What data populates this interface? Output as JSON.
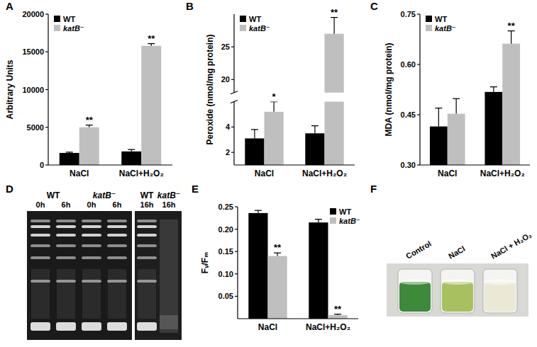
{
  "chart_data": [
    {
      "panel": "A",
      "type": "bar",
      "y_label": "Arbitrary Units",
      "categories": [
        "NaCl",
        "NaCl+H₂O₂"
      ],
      "series": [
        {
          "name": "WT",
          "color": "#000000",
          "values": [
            1600,
            1800
          ],
          "errors": [
            100,
            250
          ]
        },
        {
          "name": "katB⁻",
          "color": "#bfbfbf",
          "values": [
            5000,
            15800
          ],
          "errors": [
            300,
            300
          ],
          "annotations": [
            "**",
            "**"
          ]
        }
      ],
      "ylim": [
        0,
        20000
      ],
      "yticks": [
        0,
        5000,
        10000,
        15000,
        20000
      ],
      "legend": "upper left",
      "grid": false
    },
    {
      "panel": "B",
      "type": "bar",
      "y_label": "Peroxide (nmol/mg protein)",
      "categories": [
        "NaCl",
        "NaCl+H₂O₂"
      ],
      "series": [
        {
          "name": "WT",
          "color": "#000000",
          "values": [
            3.1,
            3.5
          ],
          "errors": [
            0.7,
            0.6
          ]
        },
        {
          "name": "katB⁻",
          "color": "#bfbfbf",
          "values": [
            5.2,
            27
          ],
          "errors": [
            0.8,
            2.5
          ],
          "annotations": [
            "*",
            "**"
          ]
        }
      ],
      "ylim": [
        1,
        30
      ],
      "ybreak": [
        6,
        18
      ],
      "yticks": [
        2,
        4,
        20,
        25
      ],
      "legend": "upper left",
      "grid": false
    },
    {
      "panel": "C",
      "type": "bar",
      "y_label": "MDA (nmol/mg protein)",
      "categories": [
        "NaCl",
        "NaCl+H₂O₂"
      ],
      "series": [
        {
          "name": "WT",
          "color": "#000000",
          "values": [
            0.415,
            0.518
          ],
          "errors": [
            0.055,
            0.015
          ]
        },
        {
          "name": "katB⁻",
          "color": "#bfbfbf",
          "values": [
            0.453,
            0.662
          ],
          "errors": [
            0.045,
            0.038
          ],
          "annotations": [
            null,
            "**"
          ]
        }
      ],
      "ylim": [
        0.3,
        0.75
      ],
      "yticks": [
        {
          "value": 0.3,
          "label": "0.30"
        },
        0.45,
        {
          "value": 0.6,
          "label": "0.60"
        },
        0.75
      ],
      "legend": "upper left",
      "grid": false
    },
    {
      "panel": "E",
      "type": "bar",
      "y_label": "Fᵥ/Fₘ",
      "categories": [
        "NaCl",
        "NaCl+H₂O₂"
      ],
      "series": [
        {
          "name": "WT",
          "color": "#000000",
          "values": [
            0.236,
            0.215
          ],
          "errors": [
            0.006,
            0.007
          ]
        },
        {
          "name": "katB⁻",
          "color": "#bfbfbf",
          "values": [
            0.14,
            0.008
          ],
          "errors": [
            0.007,
            0.002
          ],
          "annotations": [
            "**",
            "**"
          ]
        }
      ],
      "ylim": [
        0,
        0.25
      ],
      "yticks": [
        0.05,
        {
          "value": 0.1,
          "label": "0.10"
        },
        0.15,
        {
          "value": 0.2,
          "label": "0.20"
        },
        0.25
      ],
      "legend": "upper right",
      "grid": false
    }
  ],
  "gel": {
    "panel": "D",
    "groups": [
      {
        "label": "WT",
        "lanes": [
          "0h",
          "6h"
        ]
      },
      {
        "label": "katB⁻",
        "lanes": [
          "0h",
          "6h"
        ]
      },
      {
        "label": "WT",
        "lanes": [
          "16h"
        ]
      },
      {
        "label": "katB⁻",
        "lanes": [
          "16h"
        ]
      }
    ]
  },
  "photo": {
    "panel": "F",
    "tubes": [
      "Control",
      "NaCl",
      "NaCl + H₂O₂"
    ]
  }
}
